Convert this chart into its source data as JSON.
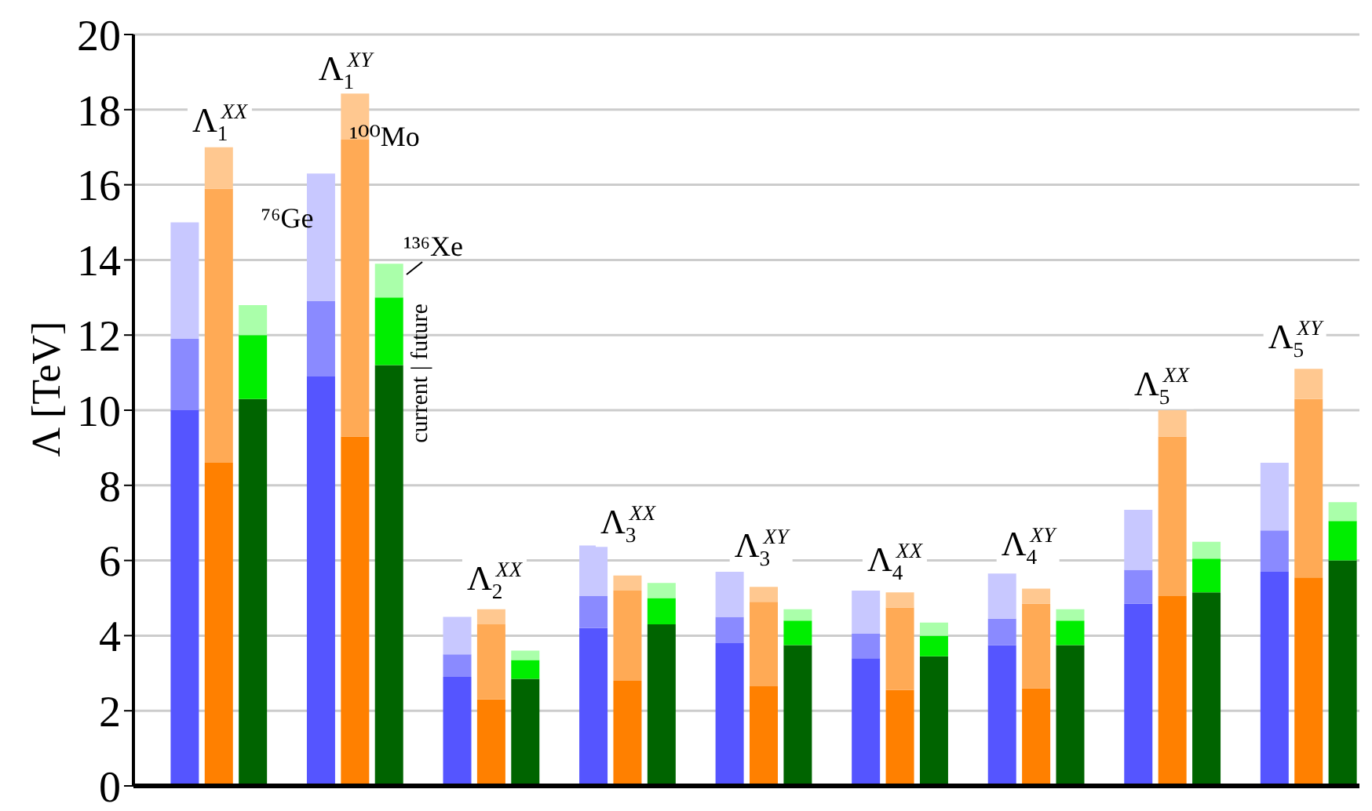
{
  "chart_data": {
    "type": "bar",
    "stacked": true,
    "ylabel": "Λ [TeV]",
    "ylim": [
      0,
      20
    ],
    "yticks": [
      0,
      2,
      4,
      6,
      8,
      10,
      12,
      14,
      16,
      18,
      20
    ],
    "grid": "y",
    "categories": [
      null,
      null,
      null,
      null,
      null,
      null,
      null,
      null,
      null,
      null,
      null,
      null,
      null,
      null,
      null,
      null,
      null,
      null,
      null,
      null,
      null,
      null,
      null,
      null,
      null,
      null,
      null,
      null,
      null,
      null,
      null,
      null,
      null,
      null,
      null,
      null
    ],
    "series": [
      {
        "values": [
          null,
          10.0,
          8.6,
          10.3,
          null,
          10.9,
          9.3,
          11.2,
          null,
          2.9,
          2.3,
          2.85,
          null,
          4.2,
          2.8,
          4.3,
          null,
          3.8,
          2.65,
          3.75,
          null,
          3.4,
          2.55,
          3.45,
          null,
          3.75,
          2.6,
          3.75,
          null,
          4.85,
          5.05,
          5.15,
          null,
          5.7,
          5.55,
          6.0
        ],
        "colors": [
          null,
          "#5555ff",
          "#ff8000",
          "#006400",
          null,
          "#5555ff",
          "#ff8000",
          "#006400",
          null,
          "#5555ff",
          "#ff8000",
          "#006400",
          null,
          "#5555ff",
          "#ff8000",
          "#006400",
          null,
          "#5555ff",
          "#ff8000",
          "#006400",
          null,
          "#5555ff",
          "#ff8000",
          "#006400",
          null,
          "#5555ff",
          "#ff8000",
          "#006400",
          null,
          "#5555ff",
          "#ff8000",
          "#006400",
          null,
          "#5555ff",
          "#ff8000",
          "#006400"
        ]
      },
      {
        "values": [
          null,
          1.9,
          7.3,
          1.7,
          null,
          2.0,
          7.9,
          1.8,
          null,
          0.6,
          2.0,
          0.5,
          null,
          0.85,
          2.4,
          0.7,
          null,
          0.7,
          2.25,
          0.65,
          null,
          0.65,
          2.2,
          0.55,
          null,
          0.7,
          2.25,
          0.65,
          null,
          0.9,
          4.25,
          0.9,
          null,
          1.1,
          4.75,
          1.05
        ],
        "colors": [
          null,
          "#8a8aff",
          "#ffaa55",
          "#00ee00",
          null,
          "#8a8aff",
          "#ffaa55",
          "#00ee00",
          null,
          "#8a8aff",
          "#ffaa55",
          "#00ee00",
          null,
          "#8a8aff",
          "#ffaa55",
          "#00ee00",
          null,
          "#8a8aff",
          "#ffaa55",
          "#00ee00",
          null,
          "#8a8aff",
          "#ffaa55",
          "#00ee00",
          null,
          "#8a8aff",
          "#ffaa55",
          "#00ee00",
          null,
          "#8a8aff",
          "#ffaa55",
          "#00ee00",
          null,
          "#8a8aff",
          "#ffaa55",
          "#00ee00"
        ]
      },
      {
        "values": [
          null,
          3.1,
          1.1,
          0.8,
          null,
          3.4,
          1.3,
          0.9,
          null,
          1.0,
          0.4,
          0.25,
          null,
          1.35,
          0.4,
          0.4,
          null,
          1.2,
          0.4,
          0.3,
          null,
          1.15,
          0.4,
          0.35,
          null,
          1.2,
          0.4,
          0.3,
          null,
          1.6,
          0.7,
          0.45,
          null,
          1.8,
          0.8,
          0.5
        ],
        "colors": [
          null,
          "#c8c8ff",
          "#ffc890",
          "#aaffaa",
          null,
          "#c8c8ff",
          "#ffc890",
          "#aaffaa",
          null,
          "#c8c8ff",
          "#ffc890",
          "#aaffaa",
          null,
          "#c8c8ff",
          "#ffc890",
          "#aaffaa",
          null,
          "#c8c8ff",
          "#ffc890",
          "#aaffaa",
          null,
          "#c8c8ff",
          "#ffc890",
          "#aaffaa",
          null,
          "#c8c8ff",
          "#ffc890",
          "#aaffaa",
          null,
          "#c8c8ff",
          "#ffc890",
          "#aaffaa",
          null,
          "#c8c8ff",
          "#ffc890",
          "#aaffaa"
        ]
      }
    ],
    "annotations": [
      "Λ$_{1}$$^{XX}$",
      "Λ$_{1}$$^{XY}$",
      "Λ$_{2}$$^{XX}$",
      "Λ$_{3}$$^{XX}$",
      "Λ$_{3}$$^{XY}$",
      "Λ$_{4}$$^{XX}$",
      "Λ$_{4}$$^{XY}$",
      "Λ$_{5}$$^{XX}$",
      "Λ$_{5}$$^{XY}$",
      "⁷⁶Ge",
      "¹⁰⁰Mo",
      "¹³⁶Xe",
      "current | future"
    ]
  }
}
